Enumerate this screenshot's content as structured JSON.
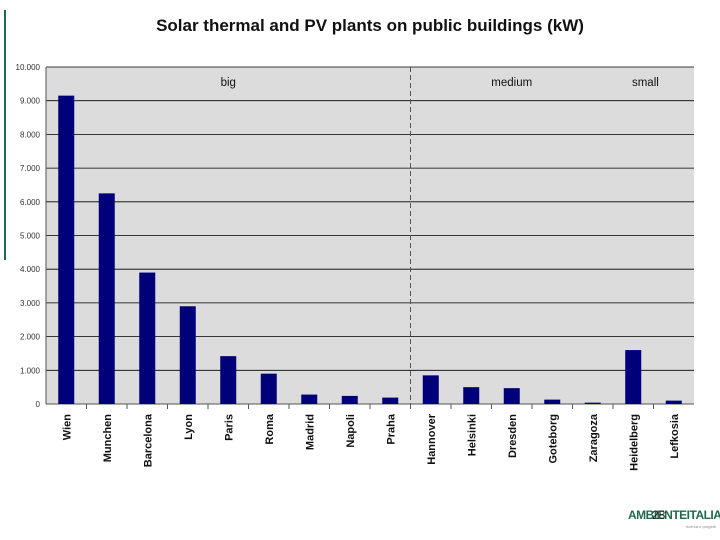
{
  "chart_data": {
    "type": "bar",
    "title": "Solar thermal and PV plants on public buildings (kW)",
    "xlabel": "",
    "ylabel": "",
    "ylim": [
      0,
      10000
    ],
    "yticks": [
      0,
      1000,
      2000,
      3000,
      4000,
      5000,
      6000,
      7000,
      8000,
      9000,
      10000
    ],
    "ytick_labels": [
      "0",
      "1.000",
      "2.000",
      "3.000",
      "4.000",
      "5.000",
      "6.000",
      "7.000",
      "8.000",
      "9.000",
      "10.000"
    ],
    "grid": true,
    "categories": [
      "Wien",
      "Munchen",
      "Barcelona",
      "Lyon",
      "Paris",
      "Roma",
      "Madrid",
      "Napoli",
      "Praha",
      "Hannover",
      "Helsinki",
      "Dresden",
      "Goteborg",
      "Zaragoza",
      "Heidelberg",
      "Lefkosia"
    ],
    "values": [
      9150,
      6250,
      3900,
      2900,
      1420,
      900,
      280,
      240,
      190,
      850,
      500,
      470,
      130,
      40,
      1600,
      100
    ],
    "bar_color": "#00007a",
    "plot_background": "#dcdcdc",
    "group_labels": [
      "big",
      "medium",
      "small"
    ]
  },
  "footer": {
    "page_number": "28",
    "logo_text": "AMBIENTEITALIA",
    "logo_subtext": "ricerca e progetti"
  }
}
